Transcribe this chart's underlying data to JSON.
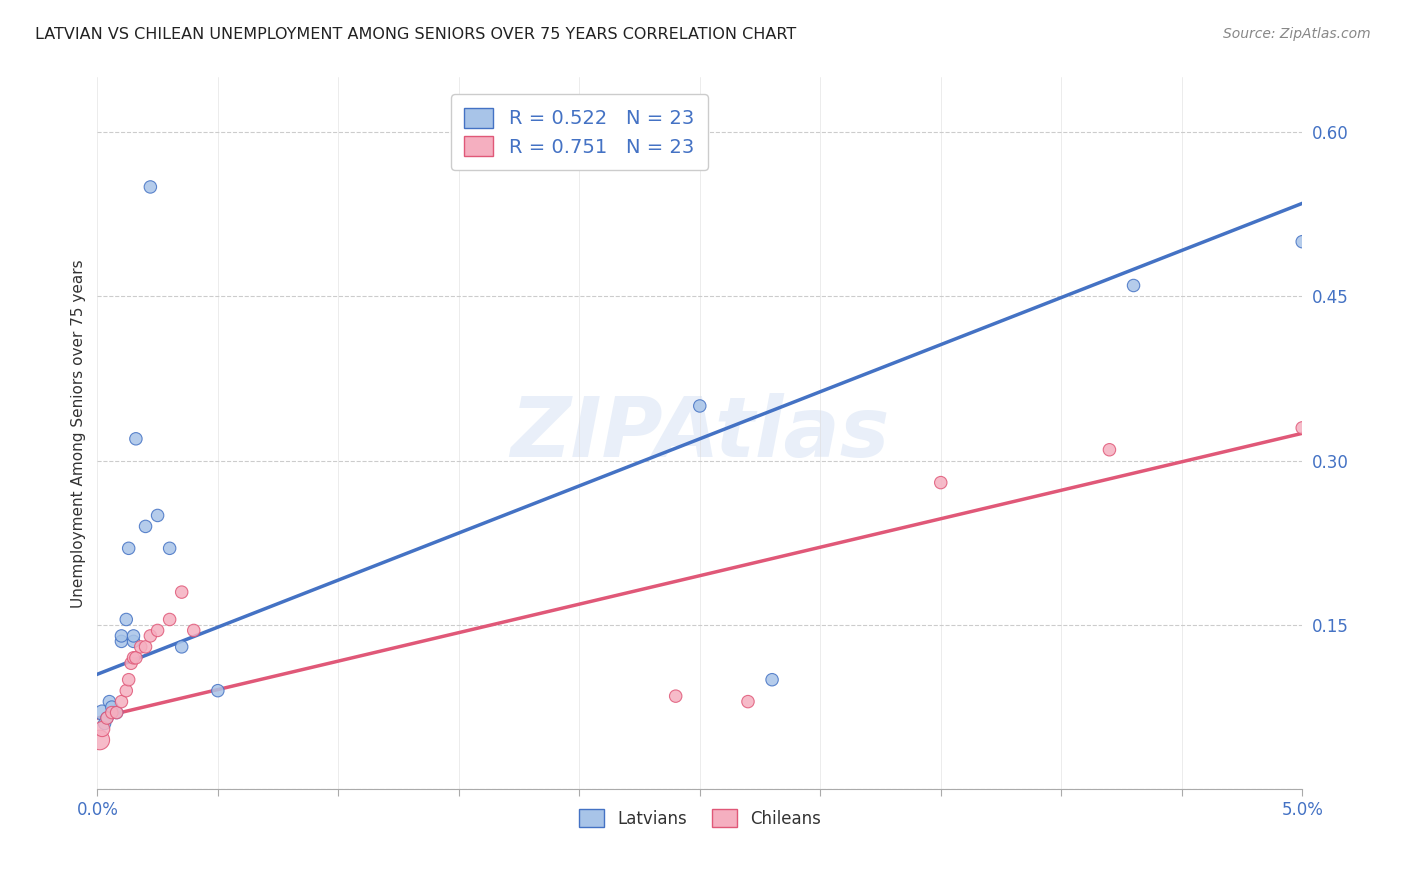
{
  "title": "LATVIAN VS CHILEAN UNEMPLOYMENT AMONG SENIORS OVER 75 YEARS CORRELATION CHART",
  "source": "Source: ZipAtlas.com",
  "ylabel": "Unemployment Among Seniors over 75 years",
  "y_ticks": [
    0.0,
    0.15,
    0.3,
    0.45,
    0.6
  ],
  "y_tick_labels": [
    "",
    "15.0%",
    "30.0%",
    "45.0%",
    "60.0%"
  ],
  "x_ticks": [
    0.0,
    0.005,
    0.01,
    0.015,
    0.02,
    0.025,
    0.03,
    0.035,
    0.04,
    0.045,
    0.05
  ],
  "x_tick_labels": [
    "0.0%",
    "",
    "",
    "",
    "",
    "",
    "",
    "",
    "",
    "",
    "5.0%"
  ],
  "latvian_color": "#a8c4e8",
  "chilean_color": "#f5afc0",
  "latvian_line_color": "#4472c4",
  "chilean_line_color": "#e05878",
  "legend_latvian_R": "R = 0.522",
  "legend_latvian_N": "N = 23",
  "legend_chilean_R": "R = 0.751",
  "legend_chilean_N": "N = 23",
  "watermark": "ZIPAtlas",
  "latvian_x": [
    0.0002,
    0.0003,
    0.0004,
    0.0005,
    0.0006,
    0.0008,
    0.001,
    0.001,
    0.0012,
    0.0013,
    0.0015,
    0.0015,
    0.0016,
    0.002,
    0.0022,
    0.0025,
    0.003,
    0.0035,
    0.005,
    0.025,
    0.028,
    0.043,
    0.05
  ],
  "latvian_y": [
    0.07,
    0.06,
    0.065,
    0.08,
    0.075,
    0.07,
    0.135,
    0.14,
    0.155,
    0.22,
    0.135,
    0.14,
    0.32,
    0.24,
    0.55,
    0.25,
    0.22,
    0.13,
    0.09,
    0.35,
    0.1,
    0.46,
    0.5
  ],
  "latvian_size": [
    120,
    80,
    80,
    80,
    80,
    80,
    80,
    80,
    80,
    80,
    80,
    80,
    80,
    80,
    80,
    80,
    80,
    80,
    80,
    80,
    80,
    80,
    80
  ],
  "chilean_x": [
    0.0001,
    0.0002,
    0.0004,
    0.0006,
    0.0008,
    0.001,
    0.0012,
    0.0013,
    0.0014,
    0.0015,
    0.0016,
    0.0018,
    0.002,
    0.0022,
    0.0025,
    0.003,
    0.0035,
    0.004,
    0.024,
    0.027,
    0.035,
    0.042,
    0.05
  ],
  "chilean_y": [
    0.045,
    0.055,
    0.065,
    0.07,
    0.07,
    0.08,
    0.09,
    0.1,
    0.115,
    0.12,
    0.12,
    0.13,
    0.13,
    0.14,
    0.145,
    0.155,
    0.18,
    0.145,
    0.085,
    0.08,
    0.28,
    0.31,
    0.33
  ],
  "chilean_size": [
    200,
    120,
    80,
    80,
    80,
    80,
    80,
    80,
    80,
    80,
    80,
    80,
    80,
    80,
    80,
    80,
    80,
    80,
    80,
    80,
    80,
    80,
    80
  ],
  "latvian_trendline_x0": 0.0,
  "latvian_trendline_y0": 0.105,
  "latvian_trendline_x1": 0.05,
  "latvian_trendline_y1": 0.535,
  "chilean_trendline_x0": 0.0,
  "chilean_trendline_y0": 0.065,
  "chilean_trendline_x1": 0.05,
  "chilean_trendline_y1": 0.325,
  "xlim": [
    0.0,
    0.05
  ],
  "ylim": [
    0.0,
    0.65
  ]
}
